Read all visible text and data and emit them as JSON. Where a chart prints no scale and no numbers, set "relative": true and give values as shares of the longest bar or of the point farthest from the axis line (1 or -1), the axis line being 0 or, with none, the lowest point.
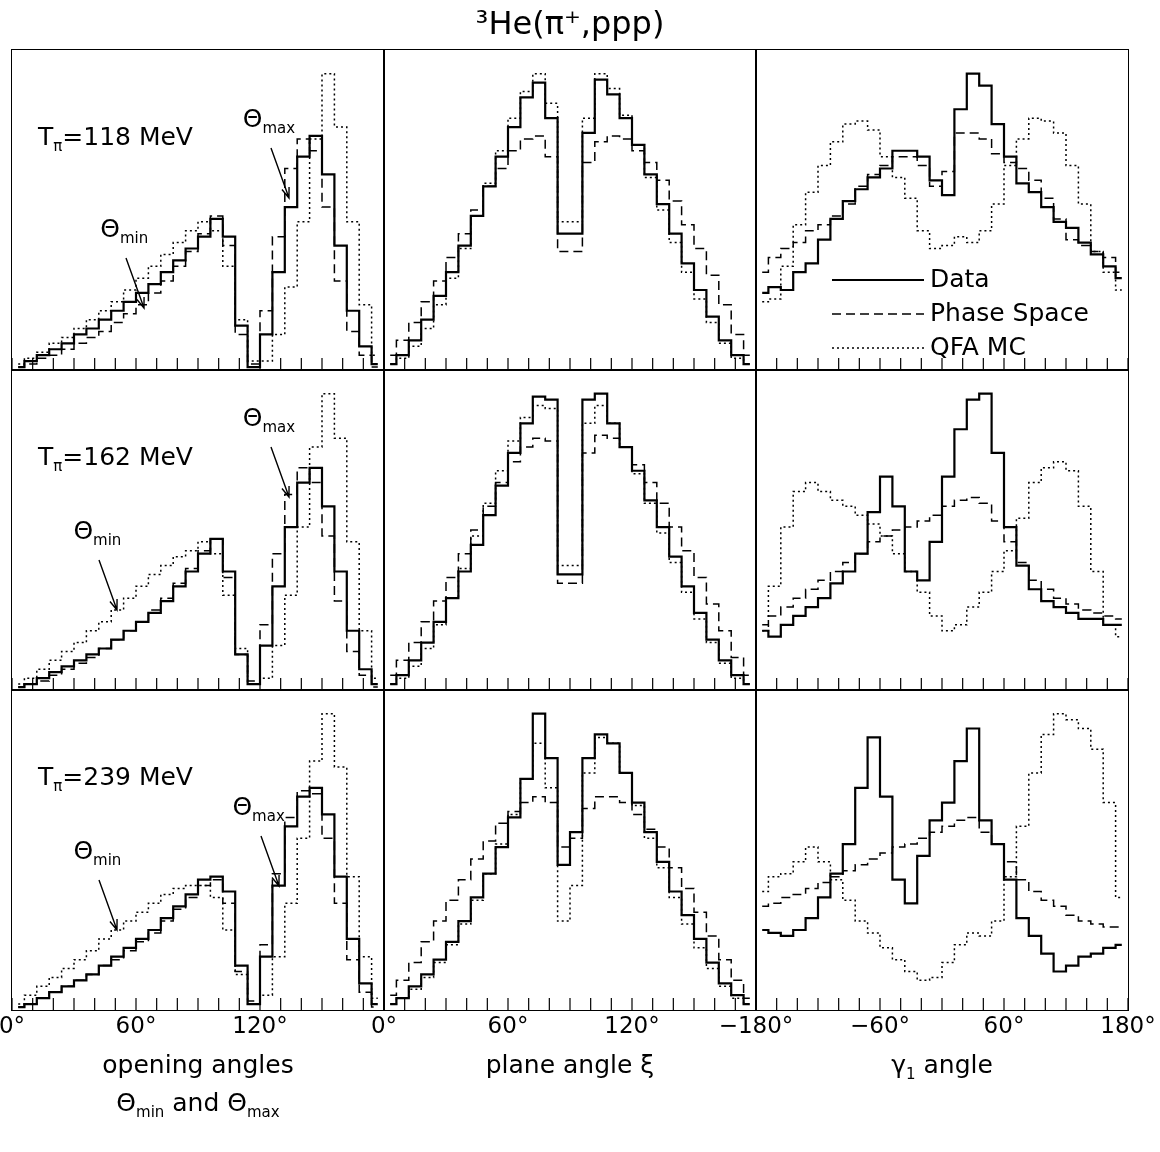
{
  "chart_data": [
    {
      "type": "step",
      "relative": true,
      "xlim": [
        0,
        180
      ],
      "tick_labels": false,
      "x": [
        3,
        9,
        15,
        21,
        27,
        33,
        39,
        45,
        51,
        57,
        63,
        69,
        75,
        81,
        87,
        93,
        99,
        105,
        111,
        117,
        123,
        129,
        135,
        141,
        147,
        153,
        159,
        165,
        171,
        177
      ],
      "xticks": [
        {
          "value": 0,
          "label": null
        },
        {
          "value": 10,
          "label": null
        },
        {
          "value": 20,
          "label": null
        },
        {
          "value": 30,
          "label": null
        },
        {
          "value": 40,
          "label": null
        },
        {
          "value": 50,
          "label": null
        },
        {
          "value": 60,
          "label": null
        },
        {
          "value": 70,
          "label": null
        },
        {
          "value": 80,
          "label": null
        },
        {
          "value": 90,
          "label": null
        },
        {
          "value": 100,
          "label": null
        },
        {
          "value": 110,
          "label": null
        },
        {
          "value": 120,
          "label": null
        },
        {
          "value": 130,
          "label": null
        },
        {
          "value": 140,
          "label": null
        },
        {
          "value": 150,
          "label": null
        },
        {
          "value": 160,
          "label": null
        },
        {
          "value": 170,
          "label": null
        },
        {
          "value": 180,
          "label": null
        }
      ],
      "series": [
        {
          "color": "#000000",
          "line_style": "solid",
          "values": [
            0.01,
            0.03,
            0.05,
            0.07,
            0.09,
            0.12,
            0.14,
            0.17,
            0.2,
            0.23,
            0.26,
            0.29,
            0.33,
            0.37,
            0.41,
            0.45,
            0.51,
            0.45,
            0.15,
            0.01,
            0.12,
            0.33,
            0.55,
            0.72,
            0.79,
            0.66,
            0.42,
            0.2,
            0.08,
            0.02
          ]
        },
        {
          "color": "#000000",
          "line_style": "dashed",
          "values": [
            0.01,
            0.02,
            0.04,
            0.05,
            0.07,
            0.09,
            0.11,
            0.13,
            0.16,
            0.19,
            0.22,
            0.26,
            0.3,
            0.35,
            0.4,
            0.46,
            0.52,
            0.42,
            0.12,
            0.02,
            0.2,
            0.45,
            0.68,
            0.78,
            0.74,
            0.55,
            0.3,
            0.13,
            0.05,
            0.01
          ]
        },
        {
          "color": "#000000",
          "line_style": "dotted",
          "values": [
            0.02,
            0.04,
            0.06,
            0.09,
            0.11,
            0.14,
            0.17,
            0.2,
            0.23,
            0.27,
            0.31,
            0.35,
            0.39,
            0.43,
            0.47,
            0.5,
            0.47,
            0.35,
            0.17,
            0.03,
            0.03,
            0.12,
            0.28,
            0.5,
            0.78,
            1.0,
            0.82,
            0.5,
            0.22,
            0.05
          ]
        }
      ],
      "annotations": [
        "T$_{π}$=118 MeV",
        {
          "text": "Θ$_{min}$",
          "x": 64,
          "y": 0.21
        },
        {
          "text": "Θ$_{max}$",
          "x": 134,
          "y": 0.58
        }
      ]
    },
    {
      "type": "step",
      "relative": true,
      "xlim": [
        0,
        180
      ],
      "tick_labels": false,
      "title": "³He(π⁺,ppp)",
      "x": [
        3,
        9,
        15,
        21,
        27,
        33,
        39,
        45,
        51,
        57,
        63,
        69,
        75,
        81,
        87,
        93,
        99,
        105,
        111,
        117,
        123,
        129,
        135,
        141,
        147,
        153,
        159,
        165,
        171,
        177
      ],
      "xticks": [
        {
          "value": 0,
          "label": null
        },
        {
          "value": 10,
          "label": null
        },
        {
          "value": 20,
          "label": null
        },
        {
          "value": 30,
          "label": null
        },
        {
          "value": 40,
          "label": null
        },
        {
          "value": 50,
          "label": null
        },
        {
          "value": 60,
          "label": null
        },
        {
          "value": 70,
          "label": null
        },
        {
          "value": 80,
          "label": null
        },
        {
          "value": 90,
          "label": null
        },
        {
          "value": 100,
          "label": null
        },
        {
          "value": 110,
          "label": null
        },
        {
          "value": 120,
          "label": null
        },
        {
          "value": 130,
          "label": null
        },
        {
          "value": 140,
          "label": null
        },
        {
          "value": 150,
          "label": null
        },
        {
          "value": 160,
          "label": null
        },
        {
          "value": 170,
          "label": null
        },
        {
          "value": 180,
          "label": null
        }
      ],
      "series": [
        {
          "color": "#000000",
          "line_style": "solid",
          "values": [
            0.02,
            0.05,
            0.1,
            0.17,
            0.25,
            0.33,
            0.42,
            0.52,
            0.62,
            0.72,
            0.82,
            0.92,
            0.97,
            0.85,
            0.46,
            0.46,
            0.8,
            0.98,
            0.93,
            0.85,
            0.76,
            0.66,
            0.56,
            0.46,
            0.36,
            0.27,
            0.18,
            0.1,
            0.05,
            0.02
          ]
        },
        {
          "color": "#000000",
          "line_style": "dashed",
          "values": [
            0.05,
            0.1,
            0.16,
            0.23,
            0.3,
            0.38,
            0.46,
            0.54,
            0.62,
            0.68,
            0.74,
            0.78,
            0.79,
            0.72,
            0.4,
            0.4,
            0.7,
            0.77,
            0.79,
            0.78,
            0.74,
            0.7,
            0.64,
            0.57,
            0.49,
            0.41,
            0.32,
            0.22,
            0.12,
            0.05
          ]
        },
        {
          "color": "#000000",
          "line_style": "dotted",
          "values": [
            0.02,
            0.04,
            0.08,
            0.14,
            0.22,
            0.31,
            0.41,
            0.52,
            0.63,
            0.74,
            0.85,
            0.94,
            1.0,
            0.9,
            0.5,
            0.5,
            0.85,
            1.0,
            0.95,
            0.86,
            0.76,
            0.65,
            0.54,
            0.43,
            0.33,
            0.24,
            0.16,
            0.09,
            0.04,
            0.02
          ]
        }
      ]
    },
    {
      "type": "step",
      "relative": true,
      "xlim": [
        -180,
        180
      ],
      "tick_labels": false,
      "legend": "bottom right",
      "x": [
        -174,
        -162,
        -150,
        -138,
        -126,
        -114,
        -102,
        -90,
        -78,
        -66,
        -54,
        -42,
        -30,
        -18,
        -6,
        6,
        18,
        30,
        42,
        54,
        66,
        78,
        90,
        102,
        114,
        126,
        138,
        150,
        162,
        174
      ],
      "xticks": [
        {
          "value": -180,
          "label": null
        },
        {
          "value": -160,
          "label": null
        },
        {
          "value": -140,
          "label": null
        },
        {
          "value": -120,
          "label": null
        },
        {
          "value": -100,
          "label": null
        },
        {
          "value": -80,
          "label": null
        },
        {
          "value": -60,
          "label": null
        },
        {
          "value": -40,
          "label": null
        },
        {
          "value": -20,
          "label": null
        },
        {
          "value": 0,
          "label": null
        },
        {
          "value": 20,
          "label": null
        },
        {
          "value": 40,
          "label": null
        },
        {
          "value": 60,
          "label": null
        },
        {
          "value": 80,
          "label": null
        },
        {
          "value": 100,
          "label": null
        },
        {
          "value": 120,
          "label": null
        },
        {
          "value": 140,
          "label": null
        },
        {
          "value": 160,
          "label": null
        },
        {
          "value": 180,
          "label": null
        }
      ],
      "series": [
        {
          "name": "Data",
          "color": "#000000",
          "line_style": "solid",
          "values": [
            0.26,
            0.28,
            0.27,
            0.33,
            0.36,
            0.44,
            0.51,
            0.57,
            0.61,
            0.65,
            0.68,
            0.74,
            0.74,
            0.72,
            0.64,
            0.59,
            0.88,
            1.0,
            0.96,
            0.83,
            0.72,
            0.63,
            0.6,
            0.55,
            0.5,
            0.48,
            0.43,
            0.39,
            0.35,
            0.31
          ]
        },
        {
          "name": "Phase Space",
          "color": "#000000",
          "line_style": "dashed",
          "values": [
            0.33,
            0.38,
            0.41,
            0.43,
            0.47,
            0.49,
            0.52,
            0.56,
            0.62,
            0.66,
            0.69,
            0.72,
            0.72,
            0.69,
            0.62,
            0.67,
            0.8,
            0.8,
            0.78,
            0.73,
            0.7,
            0.68,
            0.64,
            0.58,
            0.51,
            0.44,
            0.42,
            0.4,
            0.38,
            0.33
          ]
        },
        {
          "name": "QFA MC",
          "color": "#000000",
          "line_style": "dotted",
          "values": [
            0.23,
            0.24,
            0.35,
            0.49,
            0.6,
            0.69,
            0.77,
            0.83,
            0.84,
            0.81,
            0.72,
            0.65,
            0.58,
            0.47,
            0.41,
            0.42,
            0.45,
            0.43,
            0.47,
            0.56,
            0.69,
            0.78,
            0.85,
            0.84,
            0.8,
            0.69,
            0.56,
            0.4,
            0.33,
            0.27
          ]
        }
      ]
    },
    {
      "type": "step",
      "relative": true,
      "xlim": [
        0,
        180
      ],
      "tick_labels": false,
      "x": [
        3,
        9,
        15,
        21,
        27,
        33,
        39,
        45,
        51,
        57,
        63,
        69,
        75,
        81,
        87,
        93,
        99,
        105,
        111,
        117,
        123,
        129,
        135,
        141,
        147,
        153,
        159,
        165,
        171,
        177
      ],
      "xticks": [
        {
          "value": 0,
          "label": null
        },
        {
          "value": 10,
          "label": null
        },
        {
          "value": 20,
          "label": null
        },
        {
          "value": 30,
          "label": null
        },
        {
          "value": 40,
          "label": null
        },
        {
          "value": 50,
          "label": null
        },
        {
          "value": 60,
          "label": null
        },
        {
          "value": 70,
          "label": null
        },
        {
          "value": 80,
          "label": null
        },
        {
          "value": 90,
          "label": null
        },
        {
          "value": 100,
          "label": null
        },
        {
          "value": 110,
          "label": null
        },
        {
          "value": 120,
          "label": null
        },
        {
          "value": 130,
          "label": null
        },
        {
          "value": 140,
          "label": null
        },
        {
          "value": 150,
          "label": null
        },
        {
          "value": 160,
          "label": null
        },
        {
          "value": 170,
          "label": null
        },
        {
          "value": 180,
          "label": null
        }
      ],
      "series": [
        {
          "color": "#000000",
          "line_style": "solid",
          "values": [
            0.01,
            0.02,
            0.04,
            0.06,
            0.08,
            0.1,
            0.12,
            0.14,
            0.17,
            0.2,
            0.23,
            0.26,
            0.3,
            0.35,
            0.4,
            0.46,
            0.51,
            0.4,
            0.12,
            0.02,
            0.15,
            0.35,
            0.55,
            0.7,
            0.75,
            0.62,
            0.4,
            0.2,
            0.07,
            0.02
          ]
        },
        {
          "color": "#000000",
          "line_style": "dashed",
          "values": [
            0.01,
            0.02,
            0.03,
            0.05,
            0.07,
            0.09,
            0.11,
            0.14,
            0.17,
            0.2,
            0.23,
            0.27,
            0.31,
            0.36,
            0.41,
            0.47,
            0.51,
            0.38,
            0.12,
            0.03,
            0.22,
            0.46,
            0.66,
            0.75,
            0.7,
            0.52,
            0.3,
            0.13,
            0.05,
            0.01
          ]
        },
        {
          "color": "#000000",
          "line_style": "dotted",
          "values": [
            0.02,
            0.04,
            0.07,
            0.1,
            0.13,
            0.16,
            0.2,
            0.23,
            0.27,
            0.31,
            0.35,
            0.39,
            0.42,
            0.45,
            0.47,
            0.5,
            0.46,
            0.32,
            0.14,
            0.02,
            0.04,
            0.15,
            0.32,
            0.55,
            0.82,
            1.0,
            0.85,
            0.5,
            0.2,
            0.04
          ]
        }
      ],
      "annotations": [
        "T$_{π}$=162 MeV",
        {
          "text": "Θ$_{min}$",
          "x": 51,
          "y": 0.27
        },
        {
          "text": "Θ$_{max}$",
          "x": 134,
          "y": 0.65
        }
      ]
    },
    {
      "type": "step",
      "relative": true,
      "xlim": [
        0,
        180
      ],
      "tick_labels": false,
      "x": [
        3,
        9,
        15,
        21,
        27,
        33,
        39,
        45,
        51,
        57,
        63,
        69,
        75,
        81,
        87,
        93,
        99,
        105,
        111,
        117,
        123,
        129,
        135,
        141,
        147,
        153,
        159,
        165,
        171,
        177
      ],
      "xticks": [
        {
          "value": 0,
          "label": null
        },
        {
          "value": 10,
          "label": null
        },
        {
          "value": 20,
          "label": null
        },
        {
          "value": 30,
          "label": null
        },
        {
          "value": 40,
          "label": null
        },
        {
          "value": 50,
          "label": null
        },
        {
          "value": 60,
          "label": null
        },
        {
          "value": 70,
          "label": null
        },
        {
          "value": 80,
          "label": null
        },
        {
          "value": 90,
          "label": null
        },
        {
          "value": 100,
          "label": null
        },
        {
          "value": 110,
          "label": null
        },
        {
          "value": 120,
          "label": null
        },
        {
          "value": 130,
          "label": null
        },
        {
          "value": 140,
          "label": null
        },
        {
          "value": 150,
          "label": null
        },
        {
          "value": 160,
          "label": null
        },
        {
          "value": 170,
          "label": null
        },
        {
          "value": 180,
          "label": null
        }
      ],
      "series": [
        {
          "color": "#000000",
          "line_style": "solid",
          "values": [
            0.02,
            0.05,
            0.1,
            0.16,
            0.23,
            0.31,
            0.4,
            0.49,
            0.59,
            0.69,
            0.8,
            0.9,
            0.99,
            0.98,
            0.39,
            0.39,
            0.98,
            1.0,
            0.9,
            0.82,
            0.74,
            0.64,
            0.55,
            0.45,
            0.35,
            0.26,
            0.17,
            0.1,
            0.05,
            0.02
          ]
        },
        {
          "color": "#000000",
          "line_style": "dashed",
          "values": [
            0.05,
            0.1,
            0.16,
            0.23,
            0.3,
            0.38,
            0.46,
            0.54,
            0.62,
            0.7,
            0.77,
            0.82,
            0.85,
            0.84,
            0.36,
            0.36,
            0.8,
            0.86,
            0.85,
            0.82,
            0.76,
            0.7,
            0.63,
            0.55,
            0.47,
            0.38,
            0.29,
            0.2,
            0.11,
            0.05
          ]
        },
        {
          "color": "#000000",
          "line_style": "dotted",
          "values": [
            0.02,
            0.04,
            0.08,
            0.14,
            0.22,
            0.31,
            0.41,
            0.52,
            0.63,
            0.74,
            0.84,
            0.92,
            0.96,
            0.95,
            0.42,
            0.42,
            0.9,
            0.96,
            0.9,
            0.82,
            0.73,
            0.63,
            0.53,
            0.43,
            0.33,
            0.24,
            0.16,
            0.09,
            0.04,
            0.02
          ]
        }
      ]
    },
    {
      "type": "step",
      "relative": true,
      "xlim": [
        -180,
        180
      ],
      "tick_labels": false,
      "x": [
        -174,
        -162,
        -150,
        -138,
        -126,
        -114,
        -102,
        -90,
        -78,
        -66,
        -54,
        -42,
        -30,
        -18,
        -6,
        6,
        18,
        30,
        42,
        54,
        66,
        78,
        90,
        102,
        114,
        126,
        138,
        150,
        162,
        174
      ],
      "xticks": [
        {
          "value": -180,
          "label": null
        },
        {
          "value": -160,
          "label": null
        },
        {
          "value": -140,
          "label": null
        },
        {
          "value": -120,
          "label": null
        },
        {
          "value": -100,
          "label": null
        },
        {
          "value": -80,
          "label": null
        },
        {
          "value": -60,
          "label": null
        },
        {
          "value": -40,
          "label": null
        },
        {
          "value": -20,
          "label": null
        },
        {
          "value": 0,
          "label": null
        },
        {
          "value": 20,
          "label": null
        },
        {
          "value": 40,
          "label": null
        },
        {
          "value": 60,
          "label": null
        },
        {
          "value": 80,
          "label": null
        },
        {
          "value": 100,
          "label": null
        },
        {
          "value": 120,
          "label": null
        },
        {
          "value": 140,
          "label": null
        },
        {
          "value": 160,
          "label": null
        },
        {
          "value": 180,
          "label": null
        }
      ],
      "series": [
        {
          "color": "#000000",
          "line_style": "solid",
          "values": [
            0.2,
            0.18,
            0.22,
            0.25,
            0.28,
            0.31,
            0.36,
            0.4,
            0.46,
            0.6,
            0.72,
            0.62,
            0.4,
            0.37,
            0.5,
            0.72,
            0.88,
            0.98,
            1.0,
            0.8,
            0.55,
            0.42,
            0.34,
            0.3,
            0.28,
            0.26,
            0.24,
            0.24,
            0.22,
            0.22
          ]
        },
        {
          "color": "#000000",
          "line_style": "dashed",
          "values": [
            0.22,
            0.25,
            0.28,
            0.31,
            0.34,
            0.37,
            0.4,
            0.43,
            0.46,
            0.5,
            0.52,
            0.54,
            0.55,
            0.57,
            0.59,
            0.62,
            0.64,
            0.65,
            0.63,
            0.57,
            0.5,
            0.43,
            0.37,
            0.34,
            0.31,
            0.29,
            0.27,
            0.26,
            0.25,
            0.24
          ]
        },
        {
          "color": "#000000",
          "line_style": "dotted",
          "values": [
            0.2,
            0.35,
            0.55,
            0.67,
            0.7,
            0.67,
            0.64,
            0.62,
            0.59,
            0.56,
            0.52,
            0.46,
            0.4,
            0.33,
            0.25,
            0.2,
            0.22,
            0.28,
            0.33,
            0.4,
            0.47,
            0.58,
            0.7,
            0.75,
            0.77,
            0.74,
            0.62,
            0.4,
            0.22,
            0.18
          ]
        }
      ]
    },
    {
      "type": "step",
      "relative": true,
      "xlim": [
        0,
        180
      ],
      "tick_labels": "x",
      "xlabel": "opening angles Θ$_{min}$ and Θ$_{max}$",
      "x": [
        3,
        9,
        15,
        21,
        27,
        33,
        39,
        45,
        51,
        57,
        63,
        69,
        75,
        81,
        87,
        93,
        99,
        105,
        111,
        117,
        123,
        129,
        135,
        141,
        147,
        153,
        159,
        165,
        171,
        177
      ],
      "xticks": [
        {
          "value": 0,
          "label": "0°"
        },
        {
          "value": 10,
          "label": null
        },
        {
          "value": 20,
          "label": null
        },
        {
          "value": 30,
          "label": null
        },
        {
          "value": 40,
          "label": null
        },
        {
          "value": 50,
          "label": null
        },
        {
          "value": 60,
          "label": "60°"
        },
        {
          "value": 70,
          "label": null
        },
        {
          "value": 80,
          "label": null
        },
        {
          "value": 90,
          "label": null
        },
        {
          "value": 100,
          "label": null
        },
        {
          "value": 110,
          "label": null
        },
        {
          "value": 120,
          "label": "120°"
        },
        {
          "value": 130,
          "label": null
        },
        {
          "value": 140,
          "label": null
        },
        {
          "value": 150,
          "label": null
        },
        {
          "value": 160,
          "label": null
        },
        {
          "value": 170,
          "label": null
        },
        {
          "value": 180,
          "label": null
        }
      ],
      "series": [
        {
          "color": "#000000",
          "line_style": "solid",
          "values": [
            0.01,
            0.02,
            0.04,
            0.06,
            0.08,
            0.1,
            0.12,
            0.15,
            0.18,
            0.21,
            0.24,
            0.27,
            0.31,
            0.35,
            0.39,
            0.44,
            0.45,
            0.4,
            0.15,
            0.02,
            0.18,
            0.42,
            0.62,
            0.72,
            0.75,
            0.66,
            0.45,
            0.24,
            0.09,
            0.02
          ]
        },
        {
          "color": "#000000",
          "line_style": "dashed",
          "values": [
            0.01,
            0.02,
            0.04,
            0.06,
            0.08,
            0.1,
            0.12,
            0.15,
            0.17,
            0.2,
            0.23,
            0.26,
            0.3,
            0.34,
            0.38,
            0.42,
            0.44,
            0.36,
            0.13,
            0.03,
            0.22,
            0.46,
            0.65,
            0.74,
            0.73,
            0.58,
            0.36,
            0.17,
            0.06,
            0.01
          ]
        },
        {
          "color": "#000000",
          "line_style": "dotted",
          "values": [
            0.02,
            0.05,
            0.08,
            0.11,
            0.14,
            0.17,
            0.2,
            0.24,
            0.27,
            0.3,
            0.33,
            0.36,
            0.39,
            0.41,
            0.42,
            0.42,
            0.38,
            0.27,
            0.12,
            0.02,
            0.05,
            0.18,
            0.36,
            0.58,
            0.84,
            1.0,
            0.82,
            0.45,
            0.18,
            0.04
          ]
        }
      ],
      "annotations": [
        "T$_{π}$=239 MeV",
        {
          "text": "Θ$_{min}$",
          "x": 51,
          "y": 0.27
        },
        {
          "text": "Θ$_{max}$",
          "x": 129,
          "y": 0.42
        }
      ]
    },
    {
      "type": "step",
      "relative": true,
      "xlim": [
        0,
        180
      ],
      "tick_labels": "x",
      "xlabel": "plane angle ξ",
      "x": [
        3,
        9,
        15,
        21,
        27,
        33,
        39,
        45,
        51,
        57,
        63,
        69,
        75,
        81,
        87,
        93,
        99,
        105,
        111,
        117,
        123,
        129,
        135,
        141,
        147,
        153,
        159,
        165,
        171,
        177
      ],
      "xticks": [
        {
          "value": 0,
          "label": "0°"
        },
        {
          "value": 10,
          "label": null
        },
        {
          "value": 20,
          "label": null
        },
        {
          "value": 30,
          "label": null
        },
        {
          "value": 40,
          "label": null
        },
        {
          "value": 50,
          "label": null
        },
        {
          "value": 60,
          "label": "60°"
        },
        {
          "value": 70,
          "label": null
        },
        {
          "value": 80,
          "label": null
        },
        {
          "value": 90,
          "label": null
        },
        {
          "value": 100,
          "label": null
        },
        {
          "value": 110,
          "label": null
        },
        {
          "value": 120,
          "label": "120°"
        },
        {
          "value": 130,
          "label": null
        },
        {
          "value": 140,
          "label": null
        },
        {
          "value": 150,
          "label": null
        },
        {
          "value": 160,
          "label": null
        },
        {
          "value": 170,
          "label": null
        },
        {
          "value": 180,
          "label": null
        }
      ],
      "series": [
        {
          "color": "#000000",
          "line_style": "solid",
          "values": [
            0.02,
            0.04,
            0.08,
            0.12,
            0.17,
            0.23,
            0.3,
            0.38,
            0.46,
            0.55,
            0.65,
            0.78,
            1.0,
            0.85,
            0.49,
            0.6,
            0.85,
            0.93,
            0.9,
            0.8,
            0.7,
            0.6,
            0.5,
            0.4,
            0.32,
            0.24,
            0.16,
            0.09,
            0.05,
            0.02
          ]
        },
        {
          "color": "#000000",
          "line_style": "dashed",
          "values": [
            0.05,
            0.1,
            0.16,
            0.23,
            0.3,
            0.37,
            0.44,
            0.51,
            0.57,
            0.63,
            0.67,
            0.7,
            0.72,
            0.7,
            0.55,
            0.58,
            0.68,
            0.72,
            0.72,
            0.7,
            0.66,
            0.61,
            0.55,
            0.48,
            0.41,
            0.33,
            0.25,
            0.17,
            0.1,
            0.04
          ]
        },
        {
          "color": "#000000",
          "line_style": "dotted",
          "values": [
            0.02,
            0.04,
            0.07,
            0.11,
            0.16,
            0.22,
            0.29,
            0.37,
            0.46,
            0.56,
            0.66,
            0.78,
            0.9,
            0.75,
            0.3,
            0.42,
            0.8,
            0.92,
            0.9,
            0.8,
            0.69,
            0.58,
            0.48,
            0.38,
            0.29,
            0.21,
            0.14,
            0.08,
            0.04,
            0.02
          ]
        }
      ]
    },
    {
      "type": "step",
      "relative": true,
      "xlim": [
        -180,
        180
      ],
      "tick_labels": "x",
      "xlabel": "γ$_{1}$ angle",
      "x": [
        -174,
        -162,
        -150,
        -138,
        -126,
        -114,
        -102,
        -90,
        -78,
        -66,
        -54,
        -42,
        -30,
        -18,
        -6,
        6,
        18,
        30,
        42,
        54,
        66,
        78,
        90,
        102,
        114,
        126,
        138,
        150,
        162,
        174
      ],
      "xticks": [
        {
          "value": -180,
          "label": "−180°"
        },
        {
          "value": -160,
          "label": null
        },
        {
          "value": -140,
          "label": null
        },
        {
          "value": -120,
          "label": null
        },
        {
          "value": -100,
          "label": null
        },
        {
          "value": -80,
          "label": null
        },
        {
          "value": -60,
          "label": "−60°"
        },
        {
          "value": -40,
          "label": null
        },
        {
          "value": -20,
          "label": null
        },
        {
          "value": 0,
          "label": null
        },
        {
          "value": 20,
          "label": null
        },
        {
          "value": 40,
          "label": null
        },
        {
          "value": 60,
          "label": "60°"
        },
        {
          "value": 80,
          "label": null
        },
        {
          "value": 100,
          "label": null
        },
        {
          "value": 120,
          "label": null
        },
        {
          "value": 140,
          "label": null
        },
        {
          "value": 160,
          "label": null
        },
        {
          "value": 180,
          "label": "180°"
        }
      ],
      "series": [
        {
          "color": "#000000",
          "line_style": "solid",
          "values": [
            0.27,
            0.26,
            0.25,
            0.27,
            0.31,
            0.38,
            0.46,
            0.56,
            0.75,
            0.92,
            0.72,
            0.44,
            0.36,
            0.52,
            0.64,
            0.7,
            0.84,
            0.95,
            0.64,
            0.56,
            0.44,
            0.31,
            0.25,
            0.19,
            0.13,
            0.15,
            0.18,
            0.19,
            0.21,
            0.22
          ]
        },
        {
          "color": "#000000",
          "line_style": "dashed",
          "values": [
            0.35,
            0.36,
            0.38,
            0.39,
            0.41,
            0.43,
            0.45,
            0.47,
            0.49,
            0.51,
            0.53,
            0.55,
            0.56,
            0.58,
            0.6,
            0.62,
            0.64,
            0.65,
            0.6,
            0.56,
            0.5,
            0.44,
            0.4,
            0.37,
            0.35,
            0.32,
            0.3,
            0.29,
            0.28,
            0.28
          ]
        },
        {
          "color": "#000000",
          "line_style": "dotted",
          "values": [
            0.4,
            0.45,
            0.46,
            0.5,
            0.55,
            0.5,
            0.44,
            0.37,
            0.3,
            0.26,
            0.21,
            0.17,
            0.13,
            0.1,
            0.11,
            0.16,
            0.22,
            0.26,
            0.25,
            0.3,
            0.45,
            0.62,
            0.8,
            0.93,
            1.0,
            0.98,
            0.95,
            0.88,
            0.7,
            0.38
          ]
        }
      ]
    }
  ]
}
